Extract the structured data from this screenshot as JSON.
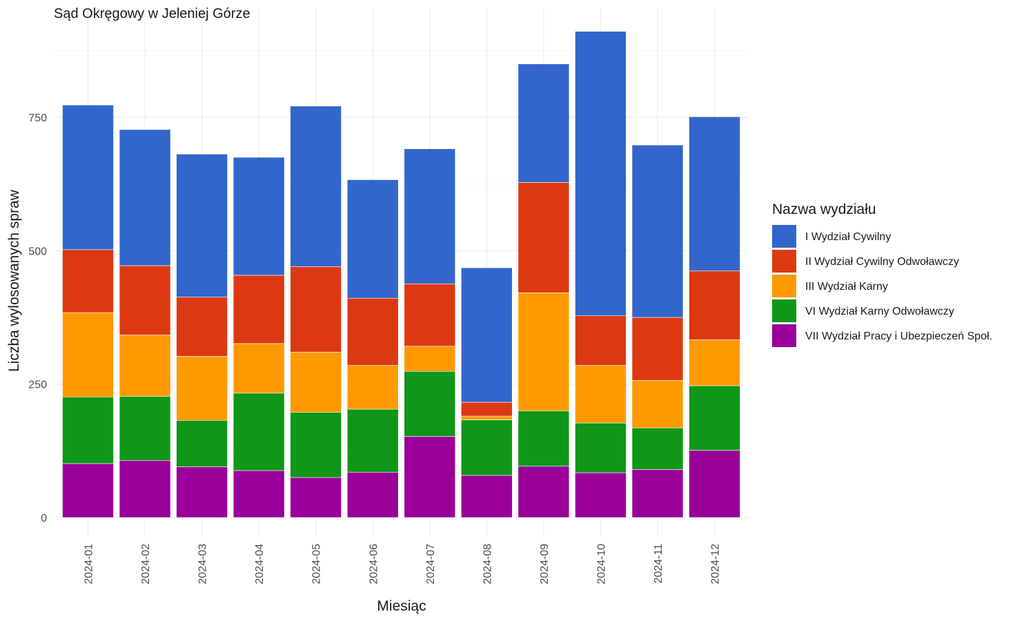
{
  "chart_data": {
    "type": "bar",
    "stacked": true,
    "title": "Sąd Okręgowy w Jeleniej Górze",
    "xlabel": "Miesiąc",
    "ylabel": "Liczba wylosowanych spraw",
    "ylim": [
      0,
      920
    ],
    "y_ticks": [
      0,
      250,
      500,
      750
    ],
    "grid": true,
    "legend_position": "right",
    "legend_title": "Nazwa wydziału",
    "categories": [
      "2024-01",
      "2024-02",
      "2024-03",
      "2024-04",
      "2024-05",
      "2024-06",
      "2024-07",
      "2024-08",
      "2024-09",
      "2024-10",
      "2024-11",
      "2024-12"
    ],
    "series": [
      {
        "name": "VII Wydział Pracy i Ubezpieczeń Społ.",
        "color": "#990099",
        "values": [
          101,
          107,
          95,
          88,
          75,
          85,
          152,
          79,
          96,
          84,
          90,
          126
        ]
      },
      {
        "name": "VI Wydział Karny Odwoławczy",
        "color": "#109618",
        "values": [
          125,
          120,
          87,
          145,
          122,
          118,
          122,
          104,
          104,
          93,
          78,
          121
        ]
      },
      {
        "name": "III Wydział Karny",
        "color": "#FF9900",
        "values": [
          158,
          115,
          120,
          93,
          113,
          82,
          47,
          7,
          221,
          108,
          89,
          86
        ]
      },
      {
        "name": "II Wydział Cywilny Odwoławczy",
        "color": "#DC3912",
        "values": [
          118,
          130,
          111,
          128,
          160,
          126,
          117,
          26,
          207,
          93,
          118,
          129
        ]
      },
      {
        "name": "I Wydział Cywilny",
        "color": "#3366CC",
        "values": [
          271,
          255,
          268,
          221,
          301,
          222,
          253,
          252,
          222,
          533,
          323,
          289
        ]
      }
    ],
    "legend_order": [
      "I Wydział Cywilny",
      "II Wydział Cywilny Odwoławczy",
      "III Wydział Karny",
      "VI Wydział Karny Odwoławczy",
      "VII Wydział Pracy i Ubezpieczeń Społ."
    ]
  }
}
